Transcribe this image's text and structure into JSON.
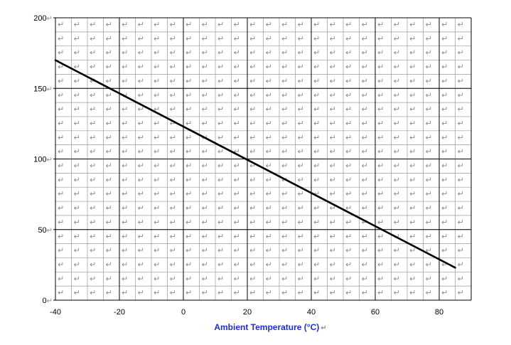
{
  "chart_data": {
    "type": "line",
    "xlabel": "Ambient Temperature (°C)",
    "ylabel": "",
    "title": "",
    "xlim": [
      -40,
      90
    ],
    "ylim": [
      0,
      200
    ],
    "x_ticks": [
      -40,
      -20,
      0,
      20,
      40,
      60,
      80
    ],
    "y_ticks": [
      0,
      50,
      100,
      150,
      200
    ],
    "grid": true,
    "series": [
      {
        "x": [
          -40,
          85
        ],
        "y": [
          170,
          23
        ]
      }
    ]
  },
  "style": {
    "line_color": "#000000",
    "xlabel_color": "#1f2ed6",
    "major_grid_color": "#000000",
    "minor_grid_color": "#9a9a9a",
    "cell_mark_glyph": "↵",
    "paragraph_mark": "↵"
  }
}
